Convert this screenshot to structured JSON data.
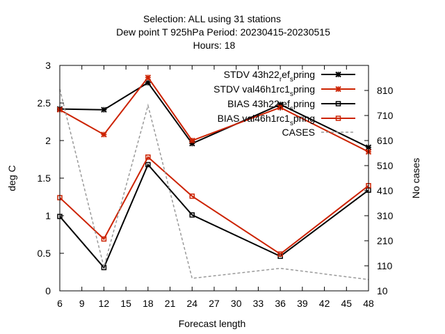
{
  "chart_data": {
    "type": "line",
    "title_lines": [
      "Selection: ALL using    31 stations",
      "Dew point T 925hPa   Period: 20230415-20230515",
      "Hours:  18"
    ],
    "xlabel": "Forecast length",
    "ylabel": "deg C",
    "y2label": "No cases",
    "xlim": [
      6,
      48
    ],
    "ylim": [
      0,
      3
    ],
    "y2lim": [
      10,
      910
    ],
    "xticks": [
      "6",
      "9",
      "12",
      "15",
      "18",
      "21",
      "24",
      "27",
      "30",
      "33",
      "36",
      "39",
      "42",
      "45",
      "48"
    ],
    "yticks": [
      "0",
      "0.5",
      "1",
      "1.5",
      "2",
      "2.5",
      "3"
    ],
    "y2ticks": [
      "10",
      "110",
      "210",
      "310",
      "410",
      "510",
      "610",
      "710",
      "810"
    ],
    "legend_position": "top-right",
    "series": [
      {
        "key": "stdv_ref",
        "name": "STDV 43h22_ref_spring",
        "legend_parts": [
          "STDV 43h22",
          "r",
          "ef",
          "s",
          "pring"
        ],
        "color": "#000000",
        "marker": "x",
        "axis": "y",
        "x": [
          6,
          12,
          18,
          24,
          36,
          48
        ],
        "y": [
          2.42,
          2.41,
          2.77,
          1.96,
          2.48,
          1.91
        ]
      },
      {
        "key": "stdv_val",
        "name": "STDV val46h1rc1_spring",
        "legend_parts": [
          "STDV val46h1rc1",
          "",
          "",
          "s",
          "pring"
        ],
        "color": "#cc2200",
        "marker": "x",
        "axis": "y",
        "x": [
          6,
          12,
          18,
          24,
          36,
          48
        ],
        "y": [
          2.41,
          2.08,
          2.84,
          2.0,
          2.44,
          1.85
        ]
      },
      {
        "key": "bias_ref",
        "name": "BIAS 43h22_ref_spring",
        "legend_parts": [
          "BIAS 43h22",
          "r",
          "ef",
          "s",
          "pring"
        ],
        "color": "#000000",
        "marker": "square",
        "axis": "y",
        "x": [
          6,
          12,
          18,
          24,
          36,
          48
        ],
        "y": [
          0.99,
          0.31,
          1.68,
          1.01,
          0.46,
          1.34
        ]
      },
      {
        "key": "bias_val",
        "name": "BIAS val46h1rc1_spring",
        "legend_parts": [
          "BIAS val46h1rc1",
          "",
          "",
          "s",
          "pring"
        ],
        "color": "#cc2200",
        "marker": "square",
        "axis": "y",
        "x": [
          6,
          12,
          18,
          24,
          36,
          48
        ],
        "y": [
          1.24,
          0.69,
          1.78,
          1.26,
          0.49,
          1.4
        ]
      },
      {
        "key": "cases",
        "name": "CASES",
        "legend_parts": [
          "CASES",
          "",
          "",
          "",
          ""
        ],
        "color": "#999999",
        "marker": "none",
        "dashed": true,
        "axis": "y2",
        "x": [
          6,
          12,
          18,
          24,
          36,
          48
        ],
        "y": [
          815,
          105,
          750,
          60,
          100,
          55
        ]
      }
    ]
  }
}
